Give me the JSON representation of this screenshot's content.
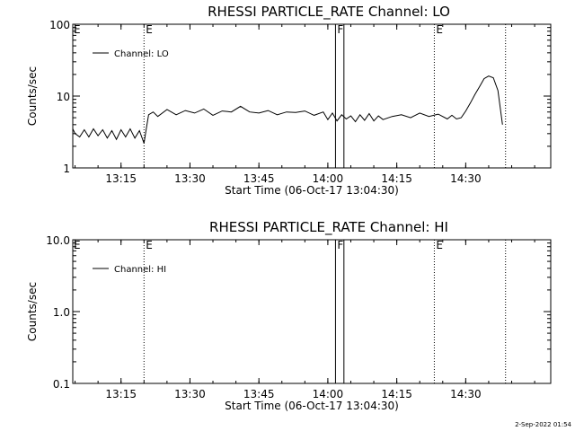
{
  "footer": {
    "datestamp": "2-Sep-2022 01:54"
  },
  "chart_data": [
    {
      "type": "line",
      "title": "RHESSI PARTICLE_RATE Channel: LO",
      "xlabel": "Start Time (06-Oct-17 13:04:30)",
      "ylabel": "Counts/sec",
      "yscale": "log",
      "ylim": [
        1,
        100
      ],
      "yticks": [
        "1",
        "10",
        "100"
      ],
      "xlim": [
        "13:04:30",
        "14:48:30"
      ],
      "xticks": [
        "13:15",
        "13:30",
        "13:45",
        "14:00",
        "14:15",
        "14:30"
      ],
      "legend": {
        "position": "top-left",
        "entries": [
          "Channel: LO"
        ]
      },
      "markers": [
        {
          "time": "13:20:00",
          "style": "dotted",
          "label": "E"
        },
        {
          "time": "14:01:40",
          "style": "solid",
          "label": "F"
        },
        {
          "time": "14:03:30",
          "style": "solid",
          "label": ""
        },
        {
          "time": "14:23:10",
          "style": "dotted",
          "label": "E"
        },
        {
          "time": "14:38:40",
          "style": "dotted",
          "label": ""
        }
      ],
      "edge_label": "E",
      "series": [
        {
          "name": "Channel: LO",
          "x": [
            "13:04:30",
            "13:05:00",
            "13:06:00",
            "13:07:00",
            "13:08:00",
            "13:09:00",
            "13:10:00",
            "13:11:00",
            "13:12:00",
            "13:13:00",
            "13:14:00",
            "13:15:00",
            "13:16:00",
            "13:17:00",
            "13:18:00",
            "13:19:00",
            "13:20:00",
            "13:20:30",
            "13:21:00",
            "13:22:00",
            "13:23:00",
            "13:25:00",
            "13:27:00",
            "13:29:00",
            "13:31:00",
            "13:33:00",
            "13:35:00",
            "13:37:00",
            "13:39:00",
            "13:41:00",
            "13:43:00",
            "13:45:00",
            "13:47:00",
            "13:49:00",
            "13:51:00",
            "13:53:00",
            "13:55:00",
            "13:57:00",
            "13:59:00",
            "14:00:00",
            "14:01:00",
            "14:02:00",
            "14:03:00",
            "14:04:00",
            "14:05:00",
            "14:06:00",
            "14:07:00",
            "14:08:00",
            "14:09:00",
            "14:10:00",
            "14:11:00",
            "14:12:00",
            "14:14:00",
            "14:16:00",
            "14:18:00",
            "14:20:00",
            "14:22:00",
            "14:24:00",
            "14:26:00",
            "14:27:00",
            "14:28:00",
            "14:29:00",
            "14:30:00",
            "14:31:00",
            "14:32:00",
            "14:33:00",
            "14:34:00",
            "14:35:00",
            "14:36:00",
            "14:37:00",
            "14:38:00"
          ],
          "values": [
            3.5,
            3.0,
            2.7,
            3.4,
            2.7,
            3.5,
            2.8,
            3.4,
            2.6,
            3.3,
            2.5,
            3.4,
            2.7,
            3.5,
            2.6,
            3.3,
            2.2,
            3.5,
            5.5,
            6.0,
            5.2,
            6.5,
            5.5,
            6.3,
            5.8,
            6.6,
            5.4,
            6.2,
            6.0,
            7.2,
            6.0,
            5.8,
            6.3,
            5.5,
            6.0,
            5.9,
            6.2,
            5.4,
            6.0,
            4.7,
            5.8,
            4.5,
            5.5,
            4.8,
            5.3,
            4.4,
            5.5,
            4.6,
            5.7,
            4.5,
            5.3,
            4.7,
            5.2,
            5.5,
            5.0,
            5.8,
            5.2,
            5.6,
            4.8,
            5.4,
            4.8,
            5.0,
            6.2,
            8.0,
            10.5,
            13.5,
            17.5,
            19.0,
            18.0,
            12.0,
            4.0
          ]
        }
      ]
    },
    {
      "type": "line",
      "title": "RHESSI PARTICLE_RATE Channel: HI",
      "xlabel": "Start Time (06-Oct-17 13:04:30)",
      "ylabel": "Counts/sec",
      "yscale": "log",
      "ylim": [
        0.1,
        10
      ],
      "yticks": [
        "0.1",
        "1.0",
        "10.0"
      ],
      "xlim": [
        "13:04:30",
        "14:48:30"
      ],
      "xticks": [
        "13:15",
        "13:30",
        "13:45",
        "14:00",
        "14:15",
        "14:30"
      ],
      "legend": {
        "position": "top-left",
        "entries": [
          "Channel: HI"
        ]
      },
      "markers": [
        {
          "time": "13:20:00",
          "style": "dotted",
          "label": "E"
        },
        {
          "time": "14:01:40",
          "style": "solid",
          "label": "F"
        },
        {
          "time": "14:03:30",
          "style": "solid",
          "label": ""
        },
        {
          "time": "14:23:10",
          "style": "dotted",
          "label": "E"
        },
        {
          "time": "14:38:40",
          "style": "dotted",
          "label": ""
        }
      ],
      "edge_label": "E",
      "series": [
        {
          "name": "Channel: HI",
          "x": [],
          "values": []
        }
      ]
    }
  ]
}
